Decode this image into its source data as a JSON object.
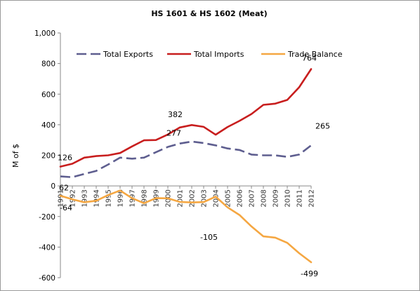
{
  "chart_data": {
    "type": "line",
    "title": "HS 1601 & HS 1602 (Meat)",
    "ylabel": "M of $",
    "xlabel": "",
    "ylim": [
      -600,
      1000
    ],
    "yticks": [
      1000,
      800,
      600,
      400,
      200,
      0,
      -200,
      -400,
      -600
    ],
    "ytick_labels": [
      "1,000",
      "800",
      "600",
      "400",
      "200",
      "0",
      "-200",
      "-400",
      "-600"
    ],
    "grid": false,
    "legend_position": "top",
    "x": [
      "1991",
      "1992",
      "1993",
      "1994",
      "1995",
      "1996",
      "1997",
      "1998",
      "1999",
      "2000",
      "2001",
      "2002",
      "2003",
      "2004",
      "2005",
      "2006",
      "2007",
      "2008",
      "2009",
      "2010",
      "2011",
      "2012"
    ],
    "series": [
      {
        "name": "Total Exports",
        "color": "#5e5e8f",
        "dash": "dashed",
        "values": [
          62,
          57,
          78,
          98,
          140,
          185,
          178,
          185,
          220,
          255,
          277,
          290,
          280,
          265,
          245,
          235,
          205,
          200,
          200,
          190,
          205,
          265
        ]
      },
      {
        "name": "Total Imports",
        "color": "#c81e1e",
        "dash": "solid",
        "values": [
          126,
          145,
          185,
          195,
          200,
          215,
          258,
          298,
          300,
          336,
          382,
          398,
          386,
          335,
          385,
          425,
          470,
          530,
          538,
          562,
          645,
          764
        ]
      },
      {
        "name": "Trade Balance",
        "color": "#f5a742",
        "dash": "solid",
        "values": [
          -64,
          -88,
          -107,
          -97,
          -60,
          -30,
          -80,
          -113,
          -80,
          -81,
          -105,
          -108,
          -106,
          -70,
          -140,
          -190,
          -265,
          -330,
          -338,
          -372,
          -440,
          -499
        ]
      }
    ],
    "data_labels": [
      {
        "series": 0,
        "index": 0,
        "text": "62"
      },
      {
        "series": 0,
        "index": 10,
        "text": "277"
      },
      {
        "series": 0,
        "index": 21,
        "text": "265"
      },
      {
        "series": 1,
        "index": 0,
        "text": "126"
      },
      {
        "series": 1,
        "index": 10,
        "text": "382"
      },
      {
        "series": 1,
        "index": 21,
        "text": "764"
      },
      {
        "series": 2,
        "index": 0,
        "text": "-64"
      },
      {
        "series": 2,
        "index": 10,
        "text": "-105"
      },
      {
        "series": 2,
        "index": 21,
        "text": "-499"
      }
    ]
  }
}
